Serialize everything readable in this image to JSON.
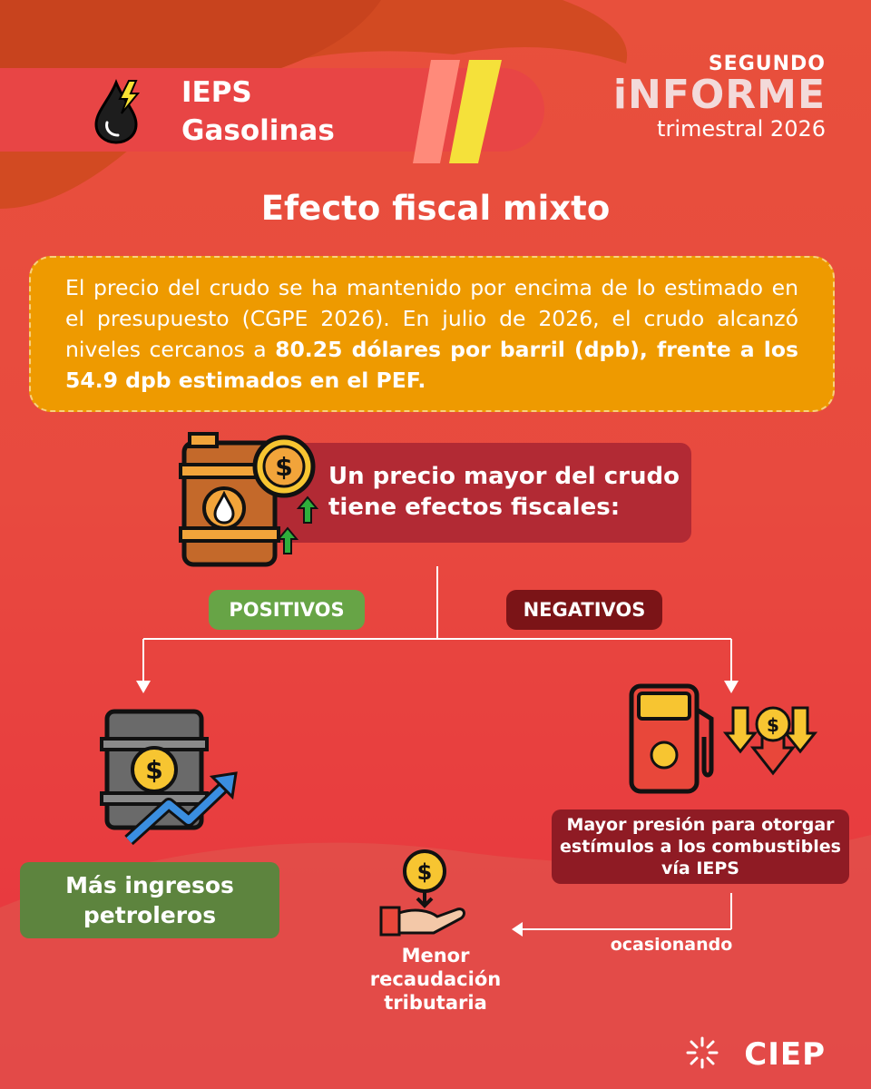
{
  "header": {
    "title_line1": "IEPS",
    "title_line2": "Gasolinas",
    "icon": "oil-drop-lightning-icon"
  },
  "report": {
    "line1": "SEGUNDO",
    "line2": "iNFORME",
    "line3": "trimestral 2026"
  },
  "main_title": "Efecto fiscal mixto",
  "info": {
    "text_regular": "El precio del crudo se ha mantenido por encima de lo estimado en el presupuesto (CGPE 2026). En julio de 2026, el crudo alcanzó niveles cercanos a ",
    "text_bold": "80.25 dólares por barril (dpb), frente a los 54.9 dpb estimados en el PEF."
  },
  "question": "Un precio mayor del crudo tiene efectos fiscales:",
  "positive": {
    "label": "POSITIVOS",
    "result": "Más ingresos petroleros",
    "icon": "oil-barrel-rising-icon"
  },
  "negative": {
    "label": "NEGATIVOS",
    "result": "Mayor presión para otorgar estímulos a los combustibles vía IEPS",
    "icon": "fuel-pump-falling-icon"
  },
  "connector_label": "ocasionando",
  "consequence": "Menor recaudación tributaria",
  "brand": "CIEP",
  "colors": {
    "background": "#e84a3f",
    "info_box": "#ee9a00",
    "question_box": "#b22a34",
    "positive": "#67a446",
    "positive_dark": "#5d843e",
    "negative": "#7b1417",
    "negative_box": "#8f1b24"
  }
}
